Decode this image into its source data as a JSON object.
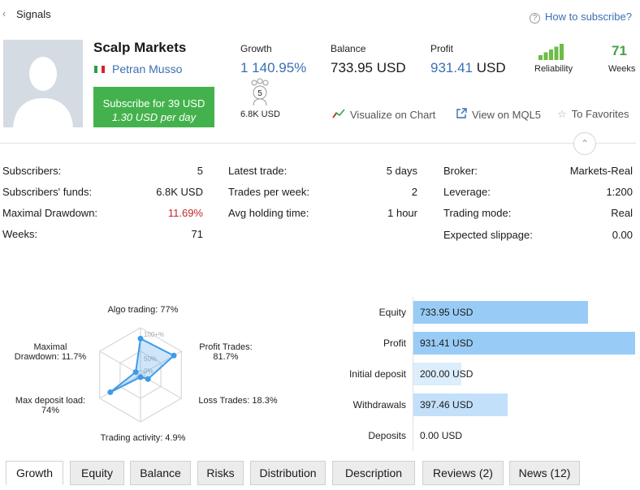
{
  "nav": {
    "back_icon": "chevron-left-icon",
    "title": "Signals",
    "help_icon": "question-circle-icon",
    "help_link": "How to subscribe?"
  },
  "signal": {
    "name": "Scalp Markets",
    "author": "Petran Musso",
    "flag_colors": [
      "#2e9d4a",
      "#ffffff",
      "#d5212e"
    ],
    "subscribe_line1": "Subscribe for 39 USD",
    "subscribe_line2": "1.30 USD per day",
    "subscribe_color": "#44b24c"
  },
  "stats": {
    "growth_label": "Growth",
    "growth_value": "1 140.95%",
    "balance_label": "Balance",
    "balance_value": "733.95 USD",
    "profit_label": "Profit",
    "profit_number": "931.41",
    "profit_unit": "USD",
    "subscribers_count": "5",
    "subscribers_funds": "6.8K USD",
    "reliability_label": "Reliability",
    "reliability_bars_filled": 5,
    "weeks_value": "71",
    "weeks_label": "Weeks"
  },
  "actions": {
    "visualize": "Visualize on Chart",
    "view_mql5": "View on MQL5",
    "favorites": "To Favorites"
  },
  "details": {
    "col1": [
      {
        "label": "Subscribers:",
        "value": "5"
      },
      {
        "label": "Subscribers' funds:",
        "value": "6.8K USD"
      },
      {
        "label": "Maximal Drawdown:",
        "value": "11.69%"
      },
      {
        "label": "Weeks:",
        "value": "71"
      }
    ],
    "col2": [
      {
        "label": "Latest trade:",
        "value": "5 days"
      },
      {
        "label": "Trades per week:",
        "value": "2"
      },
      {
        "label": "Avg holding time:",
        "value": "1 hour"
      }
    ],
    "col3": [
      {
        "label": "Broker:",
        "value": "Markets-Real"
      },
      {
        "label": "Leverage:",
        "value": "1:200"
      },
      {
        "label": "Trading mode:",
        "value": "Real"
      },
      {
        "label": "Expected slippage:",
        "value": "0.00"
      }
    ]
  },
  "radar": {
    "ring_labels": [
      "100+%",
      "50%",
      "0%"
    ],
    "axes": [
      {
        "label": "Algo trading: 77%",
        "value": 77
      },
      {
        "label": "Profit Trades:\n81.7%",
        "value": 81.7
      },
      {
        "label": "Loss Trades: 18.3%",
        "value": 18.3
      },
      {
        "label": "Trading activity: 4.9%",
        "value": 4.9
      },
      {
        "label": "Max deposit load:\n74%",
        "value": 74
      },
      {
        "label": "Maximal\nDrawdown: 11.7%",
        "value": 11.7
      }
    ],
    "color": "#3d9be9"
  },
  "chart_data": {
    "type": "bar",
    "categories": [
      "Equity",
      "Profit",
      "Initial deposit",
      "Withdrawals",
      "Deposits"
    ],
    "values": [
      733.95,
      931.41,
      200.0,
      397.46,
      0.0
    ],
    "value_labels": [
      "733.95 USD",
      "931.41 USD",
      "200.00 USD",
      "397.46 USD",
      "0.00 USD"
    ],
    "colors": [
      "#98ccf6",
      "#98ccf6",
      "#dcedfc",
      "#c3e0fa",
      "#ffffff"
    ]
  },
  "tabs": [
    "Growth",
    "Equity",
    "Balance",
    "Risks",
    "Distribution",
    "Description",
    "Reviews (2)",
    "News (12)"
  ],
  "active_tab": "Growth"
}
